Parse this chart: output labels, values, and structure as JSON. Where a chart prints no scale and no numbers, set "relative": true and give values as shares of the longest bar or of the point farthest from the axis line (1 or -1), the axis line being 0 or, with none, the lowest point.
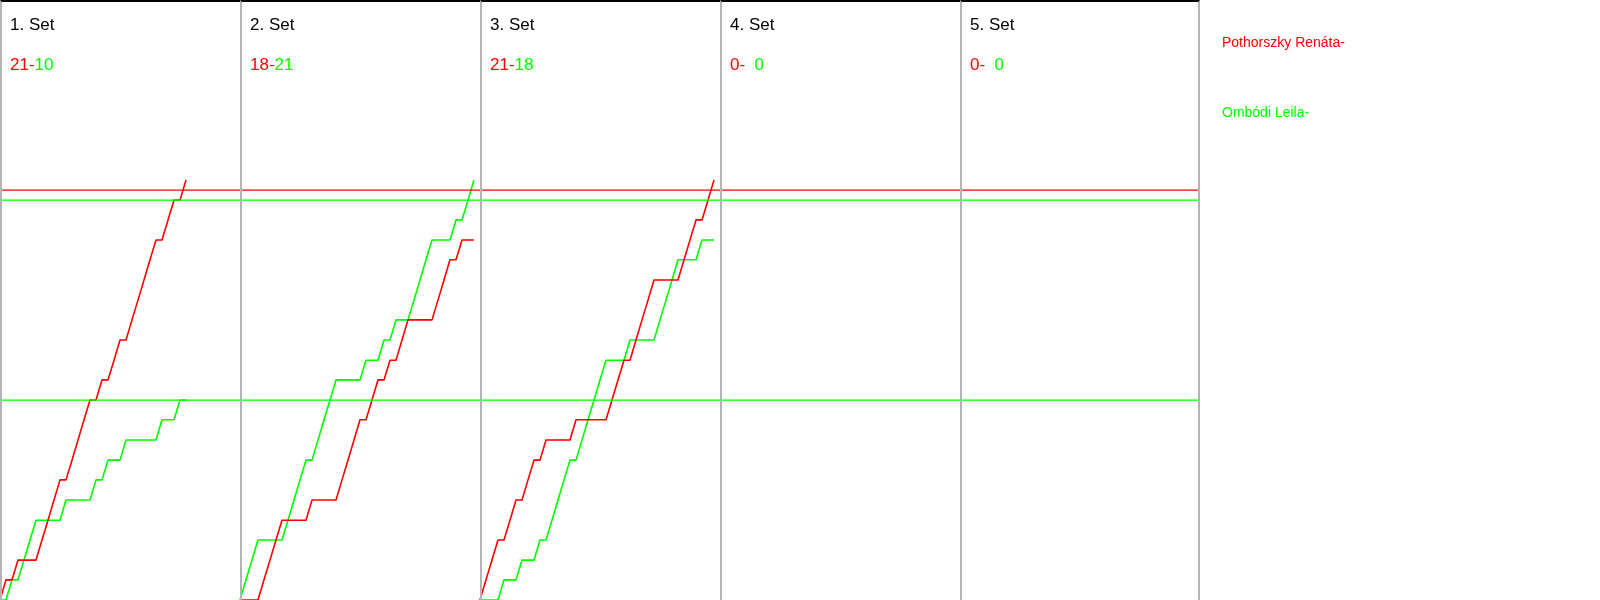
{
  "chart_data": {
    "type": "line",
    "relative": true,
    "marker": "none",
    "annotations": [
      "1. Set",
      "21-",
      "10",
      "2. Set",
      "18-",
      "21",
      "3. Set",
      "21-",
      "18",
      "4. Set",
      "0-",
      "0",
      "5. Set",
      "0-",
      "0"
    ],
    "categories": [
      null,
      null,
      null,
      null,
      null,
      null,
      null,
      null,
      null,
      null,
      null,
      null,
      null,
      null,
      null,
      null,
      null,
      null,
      null,
      null,
      null,
      null,
      null,
      null,
      null,
      null,
      null,
      null,
      null,
      null,
      null,
      null,
      null,
      null,
      null,
      null,
      null,
      null,
      null,
      null,
      null,
      null,
      null,
      null,
      null,
      null,
      null,
      null,
      null,
      null,
      null,
      null,
      null,
      null,
      null,
      null,
      null,
      null,
      null,
      null,
      null,
      null,
      null,
      null,
      null,
      null,
      null,
      null,
      null,
      null,
      null,
      null,
      null,
      null,
      null,
      null,
      null,
      null,
      null,
      null,
      null,
      null,
      null,
      null,
      null,
      null,
      null,
      null,
      null,
      null,
      null,
      null,
      null,
      null,
      null,
      null,
      null,
      null,
      null,
      null,
      null,
      null,
      null,
      null,
      null,
      null,
      null,
      null,
      null,
      null,
      null,
      null,
      null,
      null,
      null,
      null,
      null,
      null,
      null,
      null,
      null,
      null,
      null,
      null,
      null,
      null,
      null,
      null,
      null,
      null,
      null,
      null,
      null,
      null,
      null,
      null,
      null,
      null,
      null,
      null,
      null,
      null,
      null,
      null,
      null,
      null,
      null,
      null,
      null,
      null,
      null,
      null,
      null,
      null,
      null,
      null,
      null,
      null,
      null,
      null,
      null,
      null,
      null,
      null,
      null,
      null,
      null,
      null,
      null,
      null,
      null,
      null,
      null,
      null,
      null,
      null,
      null,
      null,
      null,
      null,
      null,
      null,
      null,
      null,
      null,
      null,
      null,
      null,
      null,
      null,
      null,
      null,
      null,
      null,
      null,
      null,
      null,
      null,
      null,
      null
    ],
    "ref_lines": [
      {
        "axis": "y",
        "value": 0.976,
        "color": "#ff0000"
      },
      {
        "axis": "y",
        "value": 0.952,
        "color": "#00ff00"
      },
      {
        "axis": "y",
        "value": 0.476,
        "color": "#00ff00"
      }
    ],
    "series": [
      {
        "name": "Pothorszky Renáta-",
        "color": "#ff0000",
        "values": [
          0,
          0.048,
          0.048,
          0.095,
          0.095,
          0.095,
          0.095,
          0.143,
          0.19,
          0.238,
          0.286,
          0.286,
          0.333,
          0.381,
          0.429,
          0.476,
          0.476,
          0.524,
          0.524,
          0.571,
          0.619,
          0.619,
          0.667,
          0.714,
          0.762,
          0.81,
          0.857,
          0.857,
          0.905,
          0.952,
          0.952,
          1,
          null,
          null,
          null,
          null,
          null,
          null,
          null,
          null,
          null,
          null,
          null,
          null,
          null,
          null,
          null,
          null,
          null,
          null,
          null,
          null,
          null,
          null,
          null,
          null,
          null,
          null,
          null,
          null,
          null,
          null,
          null,
          null,
          null,
          null,
          null,
          null,
          null,
          null,
          null,
          null,
          null,
          null,
          null,
          null,
          null,
          null,
          null,
          null,
          null,
          null,
          null,
          null,
          null,
          null,
          null,
          null,
          null,
          null,
          null,
          null,
          null,
          null,
          null,
          null,
          null,
          null,
          null,
          null,
          null,
          null,
          null,
          null,
          null,
          null,
          null,
          null,
          null,
          null,
          null,
          null,
          null,
          null,
          null,
          null,
          null,
          null,
          null,
          null,
          null,
          null,
          null,
          null,
          null,
          null,
          null,
          null,
          null,
          null,
          null,
          null,
          null,
          null,
          null,
          null,
          null,
          null,
          null,
          null,
          null,
          null,
          null,
          null,
          null,
          null,
          null,
          null,
          null,
          null,
          null,
          null,
          null,
          null,
          null,
          null,
          null,
          null,
          null,
          null,
          null,
          null,
          null,
          null,
          null,
          null,
          null,
          null,
          null,
          null,
          null,
          null,
          null,
          null,
          null,
          null,
          null,
          null,
          null,
          null,
          null,
          null,
          null,
          null,
          null,
          null,
          null,
          null,
          null,
          null,
          null,
          null,
          null,
          null,
          null,
          null,
          null,
          null,
          null,
          null
        ]
      },
      {
        "name": "Ombódi Leila-",
        "color": "#00ff00",
        "values": [
          0,
          0,
          0.048,
          0.048,
          0.095,
          0.143,
          0.19,
          0.19,
          0.19,
          0.19,
          0.19,
          0.238,
          0.238,
          0.238,
          0.238,
          0.238,
          0.286,
          0.286,
          0.333,
          0.333,
          0.333,
          0.381,
          0.381,
          0.381,
          0.381,
          0.381,
          0.381,
          0.429,
          0.429,
          0.429,
          0.476,
          0.476,
          null,
          null,
          null,
          null,
          null,
          null,
          null,
          null,
          null,
          null,
          null,
          null,
          null,
          null,
          null,
          null,
          null,
          null,
          null,
          null,
          null,
          null,
          null,
          null,
          null,
          null,
          null,
          null,
          null,
          null,
          null,
          null,
          null,
          null,
          null,
          null,
          null,
          null,
          null,
          null,
          null,
          null,
          null,
          null,
          null,
          null,
          null,
          null,
          null,
          null,
          null,
          null,
          null,
          null,
          null,
          null,
          null,
          null,
          null,
          null,
          null,
          null,
          null,
          null,
          null,
          null,
          null,
          null,
          null,
          null,
          null,
          null,
          null,
          null,
          null,
          null,
          null,
          null,
          null,
          null,
          null,
          null,
          null,
          null,
          null,
          null,
          null,
          null,
          null,
          null,
          null,
          null,
          null,
          null,
          null,
          null,
          null,
          null,
          null,
          null,
          null,
          null,
          null,
          null,
          null,
          null,
          null,
          null,
          null,
          null,
          null,
          null,
          null,
          null,
          null,
          null,
          null,
          null,
          null,
          null,
          null,
          null,
          null,
          null,
          null,
          null,
          null,
          null,
          null,
          null,
          null,
          null,
          null,
          null,
          null,
          null,
          null,
          null,
          null,
          null,
          null,
          null,
          null,
          null,
          null,
          null,
          null,
          null,
          null,
          null,
          null,
          null,
          null,
          null,
          null,
          null,
          null,
          null,
          null,
          null,
          null,
          null,
          null,
          null,
          null,
          null,
          null,
          null
        ]
      },
      {
        "color": "#ff0000",
        "values": [
          null,
          null,
          null,
          null,
          null,
          null,
          null,
          null,
          null,
          null,
          null,
          null,
          null,
          null,
          null,
          null,
          null,
          null,
          null,
          null,
          null,
          null,
          null,
          null,
          null,
          null,
          null,
          null,
          null,
          null,
          null,
          null,
          null,
          null,
          null,
          null,
          null,
          null,
          null,
          null,
          0,
          0,
          0,
          0,
          0.048,
          0.095,
          0.143,
          0.19,
          0.19,
          0.19,
          0.19,
          0.19,
          0.238,
          0.238,
          0.238,
          0.238,
          0.238,
          0.286,
          0.333,
          0.381,
          0.429,
          0.429,
          0.476,
          0.524,
          0.524,
          0.571,
          0.571,
          0.619,
          0.667,
          0.667,
          0.667,
          0.667,
          0.667,
          0.714,
          0.762,
          0.81,
          0.81,
          0.857,
          0.857,
          0.857,
          null,
          null,
          null,
          null,
          null,
          null,
          null,
          null,
          null,
          null,
          null,
          null,
          null,
          null,
          null,
          null,
          null,
          null,
          null,
          null,
          null,
          null,
          null,
          null,
          null,
          null,
          null,
          null,
          null,
          null,
          null,
          null,
          null,
          null,
          null,
          null,
          null,
          null,
          null,
          null,
          null,
          null,
          null,
          null,
          null,
          null,
          null,
          null,
          null,
          null,
          null,
          null,
          null,
          null,
          null,
          null,
          null,
          null,
          null,
          null,
          null,
          null,
          null,
          null,
          null,
          null,
          null,
          null,
          null,
          null,
          null,
          null,
          null,
          null,
          null,
          null,
          null,
          null,
          null,
          null,
          null,
          null,
          null,
          null,
          null,
          null,
          null,
          null,
          null,
          null,
          null,
          null,
          null,
          null,
          null,
          null,
          null,
          null,
          null,
          null,
          null,
          null,
          null,
          null,
          null,
          null,
          null,
          null,
          null,
          null,
          null,
          null,
          null,
          null,
          null,
          null,
          null,
          null,
          null,
          null
        ]
      },
      {
        "color": "#00ff00",
        "values": [
          null,
          null,
          null,
          null,
          null,
          null,
          null,
          null,
          null,
          null,
          null,
          null,
          null,
          null,
          null,
          null,
          null,
          null,
          null,
          null,
          null,
          null,
          null,
          null,
          null,
          null,
          null,
          null,
          null,
          null,
          null,
          null,
          null,
          null,
          null,
          null,
          null,
          null,
          null,
          null,
          0,
          0.048,
          0.095,
          0.143,
          0.143,
          0.143,
          0.143,
          0.143,
          0.19,
          0.238,
          0.286,
          0.333,
          0.333,
          0.381,
          0.429,
          0.476,
          0.524,
          0.524,
          0.524,
          0.524,
          0.524,
          0.571,
          0.571,
          0.571,
          0.619,
          0.619,
          0.667,
          0.667,
          0.667,
          0.714,
          0.762,
          0.81,
          0.857,
          0.857,
          0.857,
          0.857,
          0.905,
          0.905,
          0.952,
          1,
          null,
          null,
          null,
          null,
          null,
          null,
          null,
          null,
          null,
          null,
          null,
          null,
          null,
          null,
          null,
          null,
          null,
          null,
          null,
          null,
          null,
          null,
          null,
          null,
          null,
          null,
          null,
          null,
          null,
          null,
          null,
          null,
          null,
          null,
          null,
          null,
          null,
          null,
          null,
          null,
          null,
          null,
          null,
          null,
          null,
          null,
          null,
          null,
          null,
          null,
          null,
          null,
          null,
          null,
          null,
          null,
          null,
          null,
          null,
          null,
          null,
          null,
          null,
          null,
          null,
          null,
          null,
          null,
          null,
          null,
          null,
          null,
          null,
          null,
          null,
          null,
          null,
          null,
          null,
          null,
          null,
          null,
          null,
          null,
          null,
          null,
          null,
          null,
          null,
          null,
          null,
          null,
          null,
          null,
          null,
          null,
          null,
          null,
          null,
          null,
          null,
          null,
          null,
          null,
          null,
          null,
          null,
          null,
          null,
          null,
          null,
          null,
          null,
          null,
          null,
          null,
          null,
          null,
          null,
          null
        ]
      },
      {
        "color": "#ff0000",
        "values": [
          null,
          null,
          null,
          null,
          null,
          null,
          null,
          null,
          null,
          null,
          null,
          null,
          null,
          null,
          null,
          null,
          null,
          null,
          null,
          null,
          null,
          null,
          null,
          null,
          null,
          null,
          null,
          null,
          null,
          null,
          null,
          null,
          null,
          null,
          null,
          null,
          null,
          null,
          null,
          null,
          null,
          null,
          null,
          null,
          null,
          null,
          null,
          null,
          null,
          null,
          null,
          null,
          null,
          null,
          null,
          null,
          null,
          null,
          null,
          null,
          null,
          null,
          null,
          null,
          null,
          null,
          null,
          null,
          null,
          null,
          null,
          null,
          null,
          null,
          null,
          null,
          null,
          null,
          null,
          null,
          0,
          0.048,
          0.095,
          0.143,
          0.143,
          0.19,
          0.238,
          0.238,
          0.286,
          0.333,
          0.333,
          0.381,
          0.381,
          0.381,
          0.381,
          0.381,
          0.429,
          0.429,
          0.429,
          0.429,
          0.429,
          0.429,
          0.476,
          0.524,
          0.571,
          0.571,
          0.619,
          0.667,
          0.714,
          0.762,
          0.762,
          0.762,
          0.762,
          0.762,
          0.81,
          0.857,
          0.905,
          0.905,
          0.952,
          1,
          null,
          null,
          null,
          null,
          null,
          null,
          null,
          null,
          null,
          null,
          null,
          null,
          null,
          null,
          null,
          null,
          null,
          null,
          null,
          null,
          null,
          null,
          null,
          null,
          null,
          null,
          null,
          null,
          null,
          null,
          null,
          null,
          null,
          null,
          null,
          null,
          null,
          null,
          null,
          null,
          null,
          null,
          null,
          null,
          null,
          null,
          null,
          null,
          null,
          null,
          null,
          null,
          null,
          null,
          null,
          null,
          null,
          null,
          null,
          null,
          null,
          null,
          null,
          null,
          null,
          null,
          null,
          null,
          null,
          null,
          null,
          null,
          null,
          null,
          null,
          null,
          null,
          null,
          null,
          null
        ]
      },
      {
        "color": "#00ff00",
        "values": [
          null,
          null,
          null,
          null,
          null,
          null,
          null,
          null,
          null,
          null,
          null,
          null,
          null,
          null,
          null,
          null,
          null,
          null,
          null,
          null,
          null,
          null,
          null,
          null,
          null,
          null,
          null,
          null,
          null,
          null,
          null,
          null,
          null,
          null,
          null,
          null,
          null,
          null,
          null,
          null,
          null,
          null,
          null,
          null,
          null,
          null,
          null,
          null,
          null,
          null,
          null,
          null,
          null,
          null,
          null,
          null,
          null,
          null,
          null,
          null,
          null,
          null,
          null,
          null,
          null,
          null,
          null,
          null,
          null,
          null,
          null,
          null,
          null,
          null,
          null,
          null,
          null,
          null,
          null,
          null,
          0,
          0,
          0,
          0,
          0.048,
          0.048,
          0.048,
          0.095,
          0.095,
          0.095,
          0.143,
          0.143,
          0.19,
          0.238,
          0.286,
          0.333,
          0.333,
          0.381,
          0.429,
          0.476,
          0.524,
          0.571,
          0.571,
          0.571,
          0.571,
          0.619,
          0.619,
          0.619,
          0.619,
          0.619,
          0.667,
          0.714,
          0.762,
          0.81,
          0.81,
          0.81,
          0.81,
          0.857,
          0.857,
          0.857,
          null,
          null,
          null,
          null,
          null,
          null,
          null,
          null,
          null,
          null,
          null,
          null,
          null,
          null,
          null,
          null,
          null,
          null,
          null,
          null,
          null,
          null,
          null,
          null,
          null,
          null,
          null,
          null,
          null,
          null,
          null,
          null,
          null,
          null,
          null,
          null,
          null,
          null,
          null,
          null,
          null,
          null,
          null,
          null,
          null,
          null,
          null,
          null,
          null,
          null,
          null,
          null,
          null,
          null,
          null,
          null,
          null,
          null,
          null,
          null,
          null,
          null,
          null,
          null,
          null,
          null,
          null,
          null,
          null,
          null,
          null,
          null,
          null,
          null,
          null,
          null,
          null,
          null,
          null,
          null
        ]
      }
    ]
  }
}
